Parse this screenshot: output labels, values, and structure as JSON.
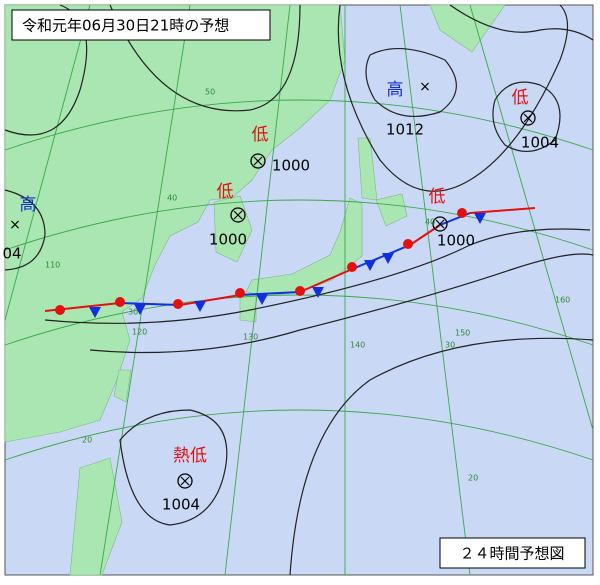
{
  "title": "令和元年06月30日21時の予想",
  "footer": "２４時間予想図",
  "systems": [
    {
      "kind": "高",
      "pressure": "1012"
    },
    {
      "kind": "低",
      "pressure": "1004"
    },
    {
      "kind": "低",
      "pressure": "1000"
    },
    {
      "kind": "低",
      "pressure": "1000"
    },
    {
      "kind": "低",
      "pressure": "1000"
    },
    {
      "kind": "高",
      "pressure": "04"
    },
    {
      "kind": "熱低",
      "pressure": "1004"
    }
  ],
  "grid_labels": [
    "50",
    "40",
    "30",
    "20",
    "110",
    "120",
    "130",
    "140",
    "150",
    "160",
    "40",
    "30",
    "20"
  ]
}
